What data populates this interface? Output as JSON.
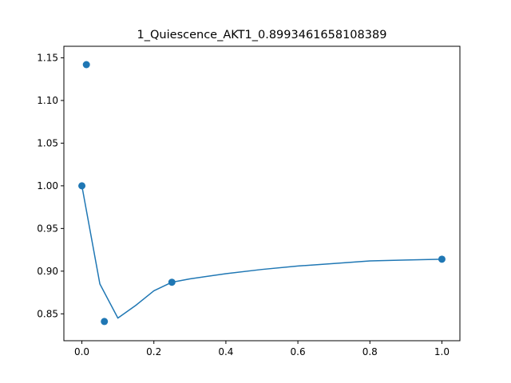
{
  "chart_data": {
    "type": "scatter",
    "title": "1_Quiescence_AKT1_0.8993461658108389",
    "xlabel": "",
    "ylabel": "",
    "xlim": [
      -0.05,
      1.05
    ],
    "ylim": [
      0.8185,
      1.1635
    ],
    "x_ticks": [
      0.0,
      0.2,
      0.4,
      0.6,
      0.8,
      1.0
    ],
    "x_tick_labels": [
      "0.0",
      "0.2",
      "0.4",
      "0.6",
      "0.8",
      "1.0"
    ],
    "y_ticks": [
      0.85,
      0.9,
      0.95,
      1.0,
      1.05,
      1.1,
      1.15
    ],
    "y_tick_labels": [
      "0.85",
      "0.90",
      "0.95",
      "1.00",
      "1.05",
      "1.10",
      "1.15"
    ],
    "grid": false,
    "color": "#1f77b4",
    "series": [
      {
        "kind": "scatter",
        "x": [
          0.0,
          0.0125,
          0.0625,
          0.25,
          1.0
        ],
        "y": [
          1.0,
          1.142,
          0.841,
          0.887,
          0.914
        ]
      },
      {
        "kind": "line",
        "x": [
          0.0,
          0.05,
          0.1,
          0.15,
          0.2,
          0.25,
          0.3,
          0.4,
          0.5,
          0.6,
          0.7,
          0.8,
          0.9,
          1.0
        ],
        "y": [
          1.0,
          0.885,
          0.845,
          0.86,
          0.877,
          0.887,
          0.891,
          0.897,
          0.902,
          0.906,
          0.909,
          0.912,
          0.913,
          0.914
        ]
      }
    ]
  }
}
